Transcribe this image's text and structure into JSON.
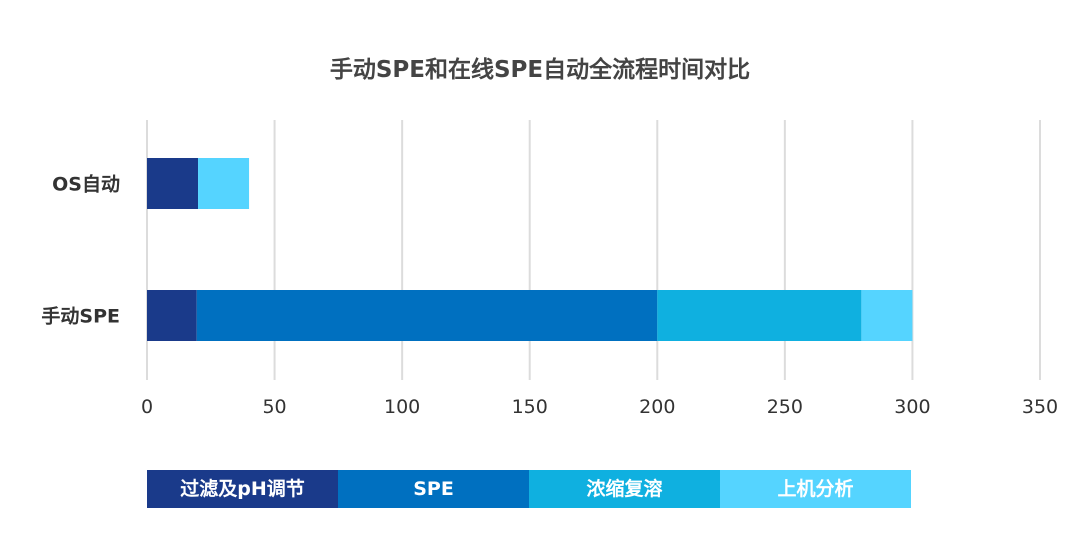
{
  "chart_data": {
    "type": "bar",
    "orientation": "horizontal",
    "stacked": true,
    "title": "手动SPE和在线SPE自动全流程时间对比",
    "categories": [
      "OS自动",
      "手动SPE"
    ],
    "series": [
      {
        "name": "过滤及pH调节",
        "color": "#1a3a8a",
        "values": [
          20,
          19.5
        ]
      },
      {
        "name": "SPE",
        "color": "#0070c0",
        "values": [
          0,
          180.5
        ]
      },
      {
        "name": "浓缩复溶",
        "color": "#0fb0e0",
        "values": [
          0,
          80
        ]
      },
      {
        "name": "上机分析",
        "color": "#55d4ff",
        "values": [
          20,
          20
        ]
      }
    ],
    "xlim": [
      0,
      350
    ],
    "xticks": [
      "0",
      "50",
      "100",
      "150",
      "200",
      "250",
      "300",
      "350"
    ],
    "grid": true,
    "legend_placement": "bottom"
  }
}
